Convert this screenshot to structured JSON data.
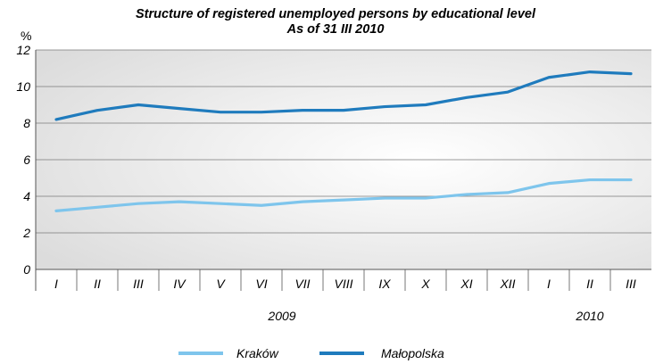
{
  "chart_data": {
    "type": "line",
    "title": "Structure of registered unemployed persons by educational level",
    "subtitle": "As of 31 III 2010",
    "ylabel": "%",
    "ylim": [
      0,
      12
    ],
    "yticks": [
      0,
      2,
      4,
      6,
      8,
      10,
      12
    ],
    "grid": true,
    "legend_position": "bottom",
    "categories": [
      "I",
      "II",
      "III",
      "IV",
      "V",
      "VI",
      "VII",
      "VIII",
      "IX",
      "X",
      "XI",
      "XII",
      "I",
      "II",
      "III"
    ],
    "year_groups": [
      {
        "label": "2009",
        "start": 0,
        "end": 11
      },
      {
        "label": "2010",
        "start": 12,
        "end": 14
      }
    ],
    "series": [
      {
        "name": "Kraków",
        "color": "#7ec5ec",
        "values": [
          3.2,
          3.4,
          3.6,
          3.7,
          3.6,
          3.5,
          3.7,
          3.8,
          3.9,
          3.9,
          4.1,
          4.2,
          4.7,
          4.9,
          4.9
        ]
      },
      {
        "name": "Małopolska",
        "color": "#1f7bbd",
        "values": [
          8.2,
          8.7,
          9.0,
          8.8,
          8.6,
          8.6,
          8.7,
          8.7,
          8.9,
          9.0,
          9.4,
          9.7,
          10.5,
          10.8,
          10.7
        ]
      }
    ]
  }
}
